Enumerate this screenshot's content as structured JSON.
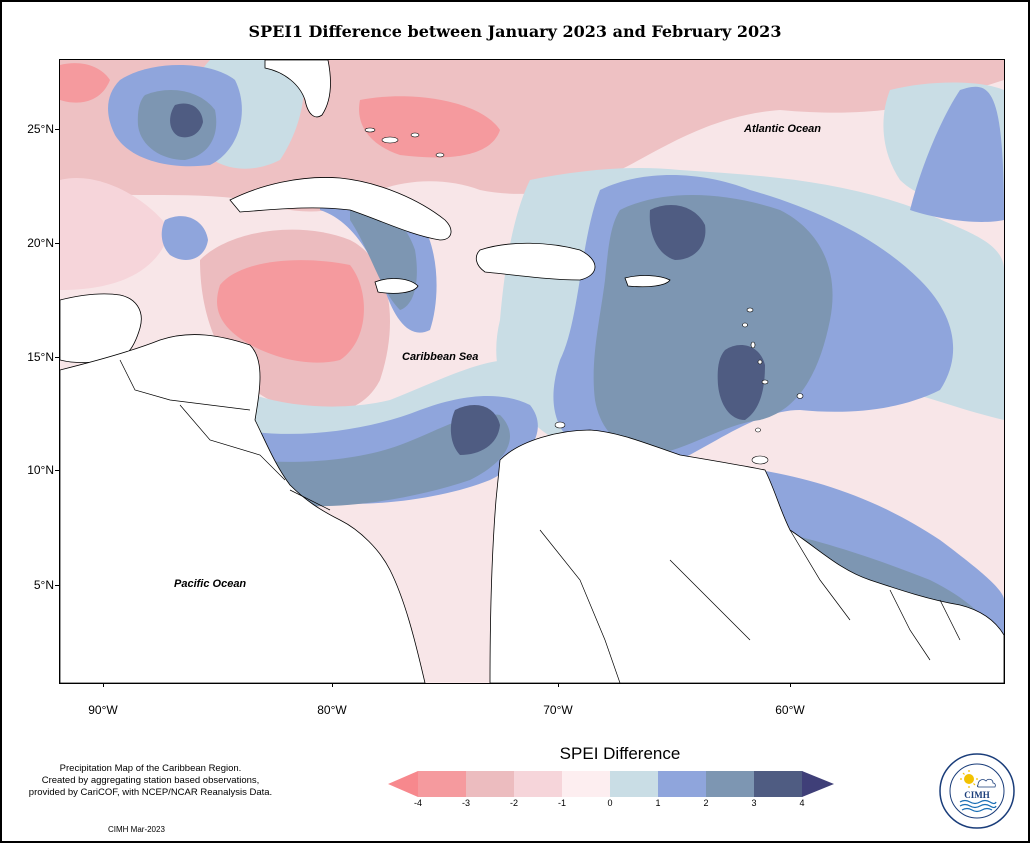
{
  "title": "SPEI1 Difference between January 2023 and February 2023",
  "labels": {
    "atlantic": "Atlantic Ocean",
    "caribbean": "Caribbean Sea",
    "pacific": "Pacific Ocean"
  },
  "axes": {
    "lat_ticks": [
      "25°N",
      "20°N",
      "15°N",
      "10°N",
      "5°N"
    ],
    "lon_ticks": [
      "90°W",
      "80°W",
      "70°W",
      "60°W"
    ]
  },
  "legend": {
    "title": "SPEI Difference",
    "tick_labels": [
      "-4",
      "-3",
      "-2",
      "-1",
      "0",
      "1",
      "2",
      "3",
      "4"
    ],
    "colors": [
      "#f59a9e",
      "#ecbcbf",
      "#f6d5da",
      "#fdeef0",
      "#c9dde5",
      "#8fa5dc",
      "#7d96b2",
      "#4f5c82"
    ],
    "arrow_left_color": "#f7888d",
    "arrow_right_color": "#3f3f78"
  },
  "caption": {
    "line1": "Precipitation Map of the Caribbean Region.",
    "line2": "Created by aggregating station based observations,",
    "line3": "provided by CariCOF, with NCEP/NCAR Reanalysis Data."
  },
  "credit": "CIMH Mar-2023",
  "logo": {
    "text": "CIMH",
    "icon": "sun-cloud-icon"
  }
}
